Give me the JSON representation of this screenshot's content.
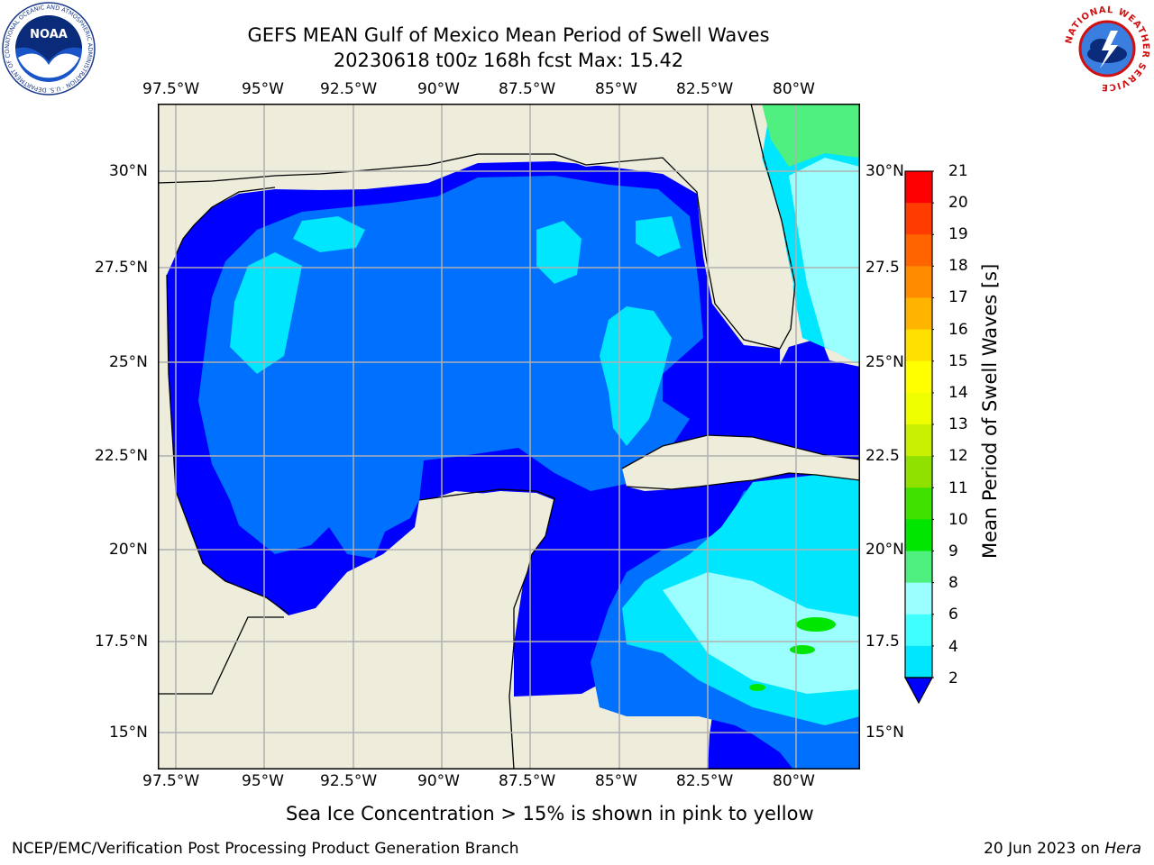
{
  "title": {
    "line1": "GEFS MEAN Gulf of Mexico Mean Period of Swell Waves",
    "line2": "20230618 t00z 168h fcst   Max: 15.42"
  },
  "axes": {
    "lon_labels": [
      "97.5°W",
      "95°W",
      "92.5°W",
      "90°W",
      "87.5°W",
      "85°W",
      "82.5°W",
      "80°W"
    ],
    "lat_labels_left": [
      "30°N",
      "27.5°N",
      "25°N",
      "22.5°N",
      "20°N",
      "17.5°N",
      "15°N"
    ],
    "lat_labels_right": [
      "30°N",
      "27.5",
      "25°N",
      "22.5",
      "20°N",
      "17.5",
      "15°N"
    ]
  },
  "colorbar": {
    "label": "Mean Period of Swell Waves [s]",
    "ticks": [
      "21",
      "20",
      "19",
      "18",
      "17",
      "16",
      "15",
      "14",
      "13",
      "12",
      "11",
      "10",
      "9",
      "8",
      "6",
      "4",
      "2"
    ],
    "colors": [
      "#0000ff",
      "#0070ff",
      "#00e6ff",
      "#40ffff",
      "#9cffff",
      "#50f080",
      "#00e600",
      "#40e000",
      "#90e000",
      "#c8f000",
      "#f0ff00",
      "#ffff00",
      "#ffe000",
      "#ffb400",
      "#ff8c00",
      "#ff6400",
      "#ff3c00",
      "#ff0000"
    ]
  },
  "map_colors": {
    "land": "#eeeddc",
    "deep_blue": "#0000ff",
    "mid_blue": "#0070ff",
    "cyan": "#00e6ff",
    "light_cyan": "#40ffff",
    "pale_cyan": "#9cffff",
    "green": "#50f080",
    "bright_green": "#00e600",
    "grid": "#b0b0b0"
  },
  "note": "Sea Ice Concentration > 15% is shown in pink to yellow",
  "footer": {
    "left": "NCEP/EMC/Verification Post Processing Product Generation Branch",
    "right_prefix": "20 Jun 2023 on ",
    "right_host": "Hera"
  },
  "logos": {
    "left_text": "NOAA",
    "left_ring": "NATIONAL OCEANIC AND ATMOSPHERIC ADMINISTRATION · U.S. DEPARTMENT OF COMMERCE",
    "right_ring": "NATIONAL WEATHER SERVICE"
  }
}
